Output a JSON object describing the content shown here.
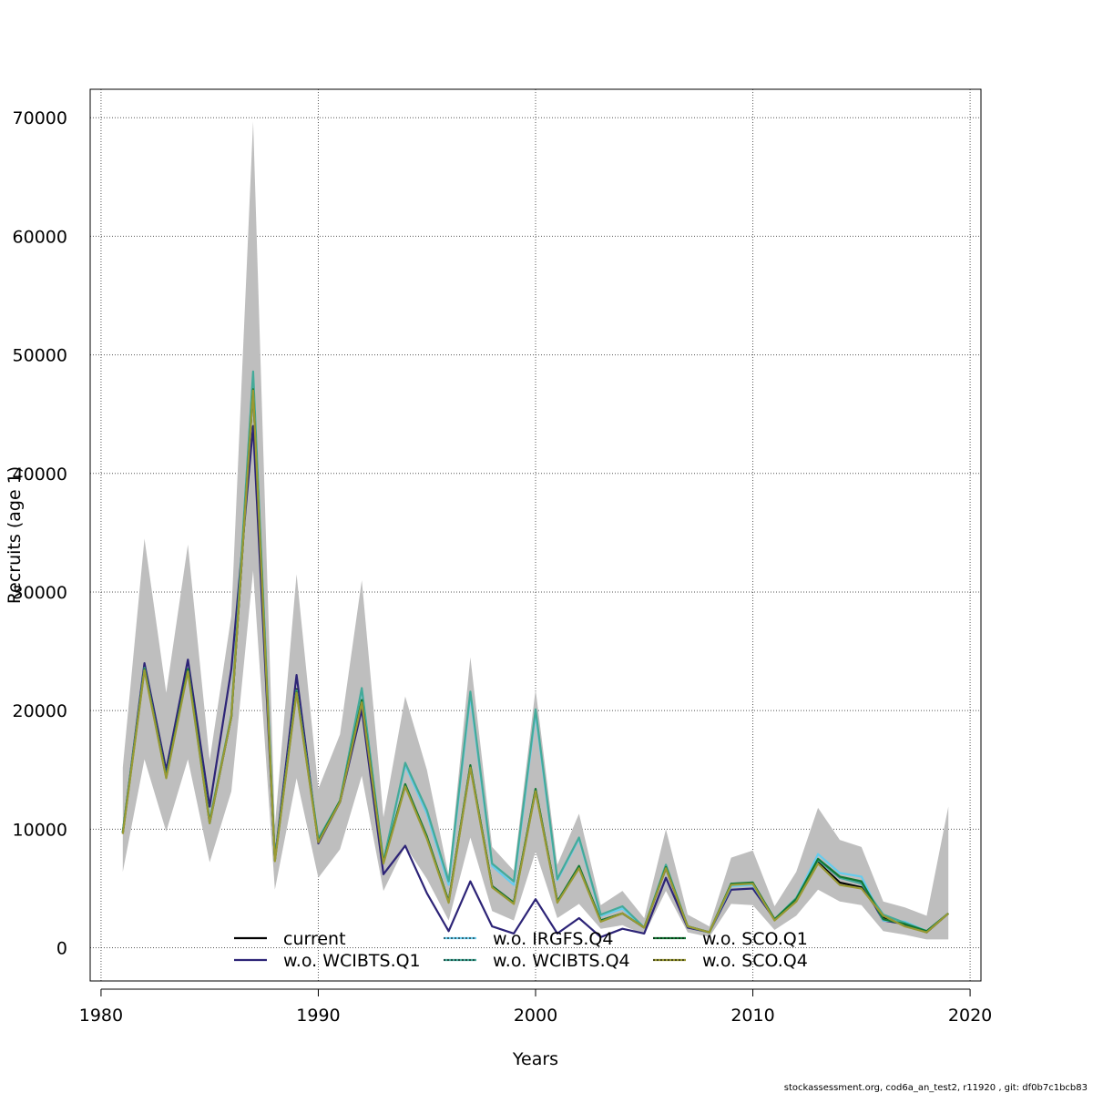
{
  "chart_data": {
    "type": "line",
    "title": "",
    "xlabel": "Years",
    "ylabel": "Recruits (age 1)",
    "xlim": [
      1979.5,
      2020.5
    ],
    "ylim": [
      -2800,
      72400
    ],
    "xticks": [
      1980,
      1990,
      2000,
      2010,
      2020
    ],
    "yticks": [
      0,
      10000,
      20000,
      30000,
      40000,
      50000,
      60000,
      70000
    ],
    "xtick_labels": [
      "1980",
      "1990",
      "2000",
      "2010",
      "2020"
    ],
    "ytick_labels": [
      "0",
      "10000",
      "20000",
      "30000",
      "40000",
      "50000",
      "60000",
      "70000"
    ],
    "grid": true,
    "legend_position": "bottom-center",
    "x": [
      1981,
      1982,
      1983,
      1984,
      1985,
      1986,
      1987,
      1988,
      1989,
      1990,
      1991,
      1992,
      1993,
      1994,
      1995,
      1996,
      1997,
      1998,
      1999,
      2000,
      2001,
      2002,
      2003,
      2004,
      2005,
      2006,
      2007,
      2008,
      2009,
      2010,
      2011,
      2012,
      2013,
      2014,
      2015,
      2016,
      2017,
      2018,
      2019
    ],
    "confidence_band": {
      "color": "#bebebe",
      "lower": [
        6400,
        15900,
        9800,
        15900,
        7200,
        13200,
        31800,
        4900,
        14300,
        5900,
        8300,
        14500,
        4800,
        8600,
        5800,
        2300,
        9300,
        3100,
        2300,
        8100,
        2500,
        3700,
        1600,
        1900,
        1100,
        4800,
        1300,
        900,
        3700,
        3600,
        1500,
        2700,
        4900,
        3900,
        3600,
        1400,
        1100,
        700,
        700
      ],
      "upper": [
        15200,
        34500,
        21500,
        34000,
        15800,
        28000,
        69700,
        10300,
        31500,
        13400,
        18000,
        31000,
        11000,
        21200,
        15000,
        6100,
        24500,
        8500,
        6500,
        21800,
        7000,
        11300,
        3600,
        4800,
        2500,
        10000,
        2800,
        1800,
        7600,
        8200,
        3500,
        6400,
        11800,
        9100,
        8500,
        3900,
        3400,
        2700,
        11900
      ]
    },
    "series": [
      {
        "name": "current",
        "color": "#000000",
        "dash": "",
        "values": [
          9700,
          23600,
          14400,
          23500,
          10500,
          19500,
          47000,
          7400,
          21800,
          9000,
          12300,
          20800,
          7200,
          13700,
          9300,
          3900,
          15300,
          5200,
          3800,
          13300,
          3900,
          6800,
          2300,
          2900,
          1700,
          6700,
          1800,
          1300,
          5300,
          5400,
          2400,
          4000,
          7200,
          5500,
          5100,
          2600,
          1900,
          1300,
          2900
        ]
      },
      {
        "name": "w.o. WCIBTS.Q1",
        "color": "#2d2477",
        "dash": "",
        "values": [
          9700,
          24000,
          15000,
          24300,
          11900,
          23500,
          44000,
          7500,
          23000,
          8800,
          12300,
          20100,
          6200,
          8600,
          4600,
          1400,
          5600,
          1800,
          1200,
          4100,
          1200,
          2500,
          900,
          1600,
          1200,
          5900,
          1700,
          1300,
          4900,
          5000,
          2400,
          4000,
          7400,
          5900,
          5500,
          2300,
          2000,
          1400,
          2900
        ]
      },
      {
        "name": "w.o. IRGFS.Q4",
        "color": "#66ccee",
        "dash": "6,4",
        "values": [
          9700,
          23500,
          14400,
          23300,
          10500,
          19600,
          48000,
          7400,
          21700,
          9100,
          12400,
          21800,
          7300,
          15400,
          11300,
          5300,
          21300,
          6900,
          5300,
          19800,
          5700,
          9200,
          2700,
          3300,
          1700,
          6900,
          1800,
          1300,
          5200,
          5300,
          2400,
          4200,
          7900,
          6300,
          6000,
          2300,
          2200,
          1400,
          2900
        ]
      },
      {
        "name": "w.o. WCIBTS.Q4",
        "color": "#44aa99",
        "dash": "6,4",
        "values": [
          9800,
          23600,
          14400,
          23500,
          10700,
          19600,
          48600,
          7500,
          21700,
          9200,
          12400,
          21900,
          7300,
          15600,
          11600,
          5600,
          21600,
          7100,
          5600,
          20100,
          5800,
          9300,
          2800,
          3500,
          1700,
          7000,
          1800,
          1300,
          5400,
          5400,
          2400,
          4200,
          7400,
          5900,
          5400,
          2800,
          2100,
          1400,
          2900
        ]
      },
      {
        "name": "w.o. SCO.Q1",
        "color": "#117733",
        "dash": "6,4",
        "values": [
          9700,
          23500,
          14400,
          23500,
          10600,
          19500,
          47100,
          7400,
          21600,
          9000,
          12400,
          20900,
          7200,
          13800,
          9400,
          3900,
          15400,
          5200,
          3800,
          13400,
          3900,
          6900,
          2300,
          2900,
          1700,
          6800,
          1800,
          1300,
          5400,
          5500,
          2400,
          4100,
          7500,
          6000,
          5600,
          2400,
          2000,
          1400,
          2900
        ]
      },
      {
        "name": "w.o. SCO.Q4",
        "color": "#999933",
        "dash": "6,4",
        "values": [
          9600,
          23400,
          14300,
          23300,
          10500,
          19500,
          47000,
          7300,
          21500,
          8900,
          12300,
          20700,
          7100,
          13600,
          9200,
          3800,
          15200,
          5100,
          3700,
          13200,
          3800,
          6700,
          2200,
          2900,
          1700,
          6700,
          1800,
          1300,
          5300,
          5400,
          2300,
          3900,
          7100,
          5300,
          5000,
          2700,
          1800,
          1300,
          2900
        ]
      }
    ]
  },
  "footer": "stockassessment.org, cod6a_an_test2, r11920 , git: df0b7c1bcb83"
}
